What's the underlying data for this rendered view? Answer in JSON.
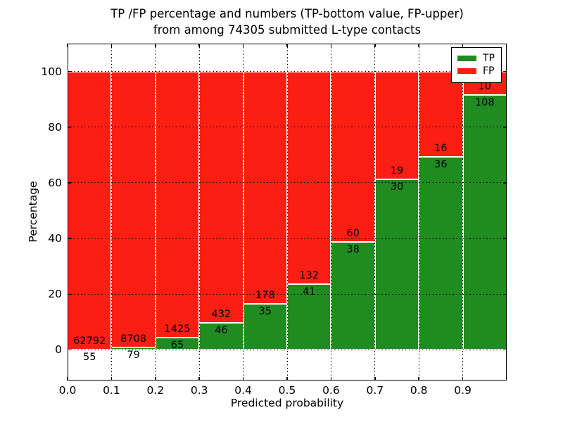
{
  "chart_data": {
    "type": "bar",
    "stacked": true,
    "title_line1": "TP /FP percentage and numbers (TP-bottom value, FP-upper)",
    "title_line2": "from among 74305 submitted L-type contacts",
    "xlabel": "Predicted probability",
    "ylabel": "Percentage",
    "total_submitted": 74305,
    "xlim": [
      0.0,
      1.0
    ],
    "ylim": [
      -11,
      110
    ],
    "grid": true,
    "legend_position": "upper right",
    "x_ticks": [
      {
        "v": 0.0,
        "label": "0.0"
      },
      {
        "v": 0.1,
        "label": "0.1"
      },
      {
        "v": 0.2,
        "label": "0.2"
      },
      {
        "v": 0.3,
        "label": "0.3"
      },
      {
        "v": 0.4,
        "label": "0.4"
      },
      {
        "v": 0.5,
        "label": "0.5"
      },
      {
        "v": 0.6,
        "label": "0.6"
      },
      {
        "v": 0.7,
        "label": "0.7"
      },
      {
        "v": 0.8,
        "label": "0.8"
      },
      {
        "v": 0.9,
        "label": "0.9"
      }
    ],
    "y_ticks": [
      {
        "v": 0,
        "label": "0"
      },
      {
        "v": 20,
        "label": "20"
      },
      {
        "v": 40,
        "label": "40"
      },
      {
        "v": 60,
        "label": "60"
      },
      {
        "v": 80,
        "label": "80"
      },
      {
        "v": 100,
        "label": "100"
      }
    ],
    "bins": [
      {
        "x0": 0.0,
        "x1": 0.1,
        "tp": 55,
        "fp": 62792
      },
      {
        "x0": 0.1,
        "x1": 0.2,
        "tp": 79,
        "fp": 8708
      },
      {
        "x0": 0.2,
        "x1": 0.3,
        "tp": 65,
        "fp": 1425
      },
      {
        "x0": 0.3,
        "x1": 0.4,
        "tp": 46,
        "fp": 432
      },
      {
        "x0": 0.4,
        "x1": 0.5,
        "tp": 35,
        "fp": 178
      },
      {
        "x0": 0.5,
        "x1": 0.6,
        "tp": 41,
        "fp": 132
      },
      {
        "x0": 0.6,
        "x1": 0.7,
        "tp": 38,
        "fp": 60
      },
      {
        "x0": 0.7,
        "x1": 0.8,
        "tp": 30,
        "fp": 19
      },
      {
        "x0": 0.8,
        "x1": 0.9,
        "tp": 36,
        "fp": 16
      },
      {
        "x0": 0.9,
        "x1": 1.0,
        "tp": 108,
        "fp": 10
      }
    ],
    "legend": [
      {
        "label": "TP",
        "color": "#208b20"
      },
      {
        "label": "FP",
        "color": "#fb1f13"
      }
    ],
    "colors": {
      "tp": "#208b20",
      "fp": "#fb1f13",
      "grid": "#000000",
      "bar_edge": "#ffffff",
      "background": "#ffffff",
      "text": "#000000"
    }
  }
}
